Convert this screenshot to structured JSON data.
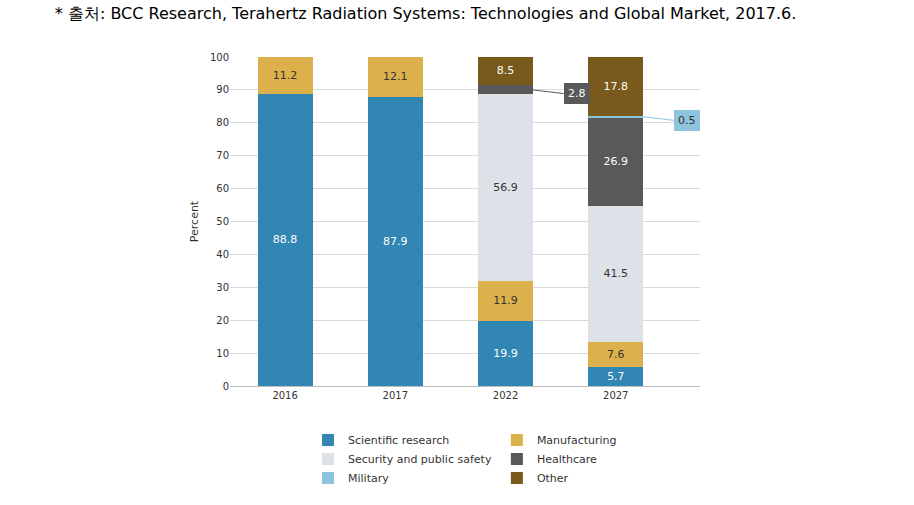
{
  "chart_data": {
    "type": "bar",
    "title": "* 출처: BCC Research, Terahertz Radiation Systems: Technologies and Global Market, 2017.6.",
    "y_label": "Percent",
    "categories": [
      "2016",
      "2017",
      "2022",
      "2027"
    ],
    "series": [
      {
        "name": "Scientific research",
        "color": "#3286b4",
        "values": [
          88.8,
          87.9,
          19.9,
          5.7
        ]
      },
      {
        "name": "Manufacturing",
        "color": "#dcb04a",
        "values": [
          11.2,
          12.1,
          11.9,
          7.6
        ]
      },
      {
        "name": "Security and public safety",
        "color": "#dde2e8",
        "values": [
          null,
          null,
          56.9,
          41.5
        ]
      },
      {
        "name": "Healthcare",
        "color": "#595959",
        "values": [
          null,
          null,
          2.8,
          26.9
        ]
      },
      {
        "name": "Military",
        "color": "#8dc3dd",
        "values": [
          null,
          null,
          null,
          0.5
        ]
      },
      {
        "name": "Other",
        "color": "#7a5a1c",
        "values": [
          null,
          null,
          8.5,
          17.8
        ]
      }
    ],
    "stacked": true,
    "data_labels": true,
    "ylim": [
      0,
      100
    ],
    "yticks": [
      0,
      10,
      20,
      30,
      40,
      50,
      60,
      70,
      80,
      90,
      100
    ],
    "grid": true,
    "legend": "bottom"
  }
}
